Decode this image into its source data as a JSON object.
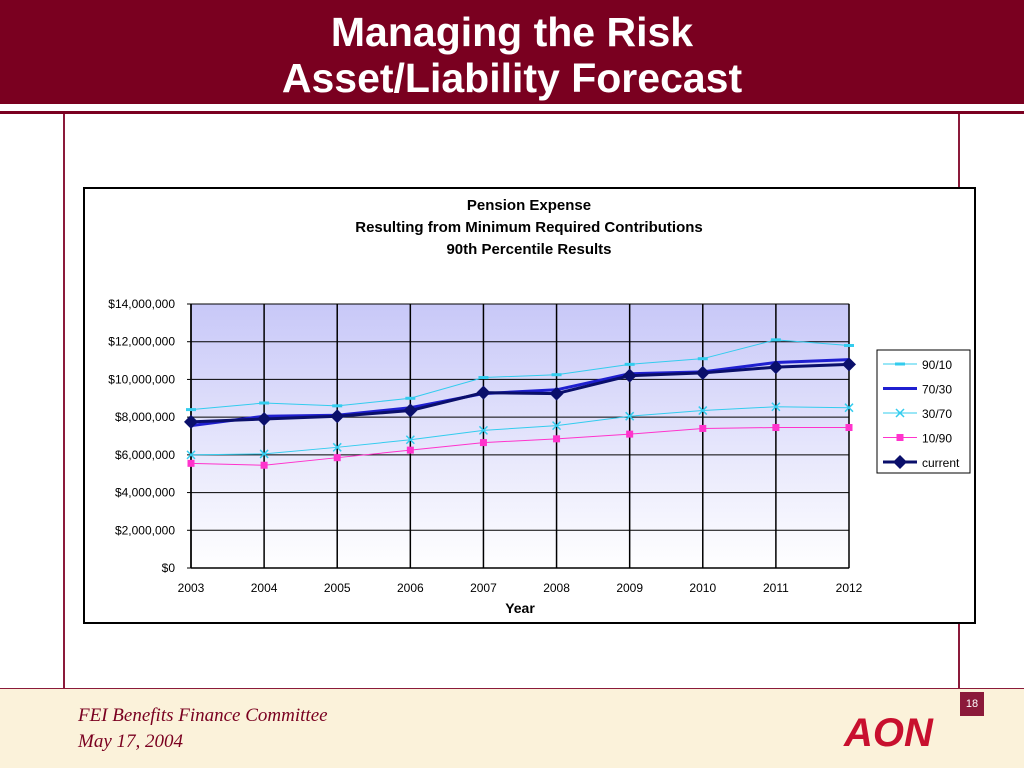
{
  "slide": {
    "title_line1": "Managing the Risk",
    "title_line2": "Asset/Liability Forecast",
    "footer_line1": "FEI Benefits Finance Committee",
    "footer_line2": "May 17, 2004",
    "page_number": "18",
    "logo_text": "AON",
    "colors": {
      "header": "#7a0020",
      "footer_band": "#fbf2da",
      "logo": "#c8102e"
    }
  },
  "chart_data": {
    "type": "line",
    "title_lines": [
      "Pension Expense",
      "Resulting from Minimum Required Contributions",
      "90th Percentile Results"
    ],
    "xlabel": "Year",
    "ylabel": "",
    "x": [
      2003,
      2004,
      2005,
      2006,
      2007,
      2008,
      2009,
      2010,
      2011,
      2012
    ],
    "x_tick_labels": [
      "2003",
      "2004",
      "2005",
      "2006",
      "2007",
      "2008",
      "2009",
      "2010",
      "2011",
      "2012"
    ],
    "ylim": [
      0,
      14000000
    ],
    "y_tick_labels": [
      "$0",
      "$2,000,000",
      "$4,000,000",
      "$6,000,000",
      "$8,000,000",
      "$10,000,000",
      "$12,000,000",
      "$14,000,000"
    ],
    "grid": true,
    "legend_position": "right",
    "series": [
      {
        "name": "90/10",
        "color": "#33ccee",
        "marker": "dash",
        "width": 1,
        "values": [
          8400000,
          8750000,
          8600000,
          9000000,
          10100000,
          10250000,
          10800000,
          11100000,
          12100000,
          11800000
        ]
      },
      {
        "name": "70/30",
        "color": "#1f1fd0",
        "marker": "none",
        "width": 3,
        "values": [
          7550000,
          8050000,
          8100000,
          8500000,
          9250000,
          9450000,
          10300000,
          10400000,
          10900000,
          11050000
        ]
      },
      {
        "name": "30/70",
        "color": "#33ccee",
        "marker": "x",
        "width": 1,
        "values": [
          6000000,
          6050000,
          6400000,
          6800000,
          7300000,
          7550000,
          8050000,
          8350000,
          8550000,
          8500000
        ]
      },
      {
        "name": "10/90",
        "color": "#ff33cc",
        "marker": "square",
        "width": 1,
        "values": [
          5550000,
          5450000,
          5850000,
          6250000,
          6650000,
          6850000,
          7100000,
          7400000,
          7450000,
          7450000
        ]
      },
      {
        "name": "current",
        "color": "#0a0f6b",
        "marker": "diamond",
        "width": 3,
        "values": [
          7750000,
          7900000,
          8050000,
          8350000,
          9300000,
          9250000,
          10200000,
          10350000,
          10650000,
          10800000
        ]
      }
    ]
  }
}
